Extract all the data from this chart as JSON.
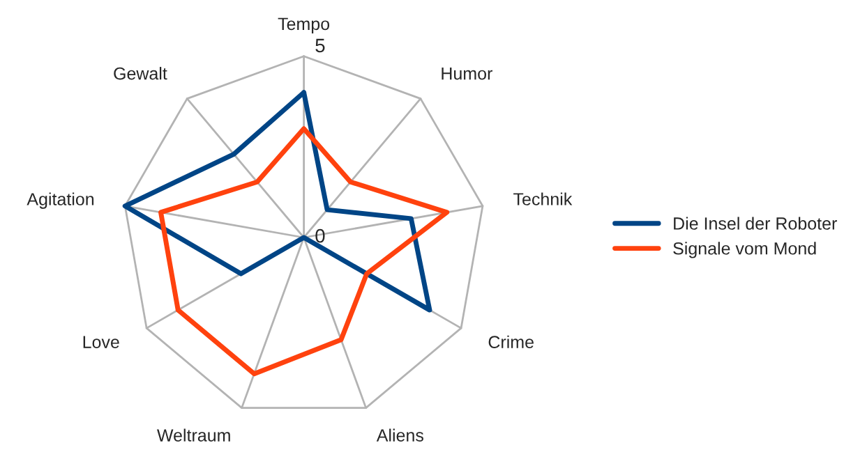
{
  "chart_data": {
    "type": "radar",
    "categories": [
      "Tempo",
      "Humor",
      "Technik",
      "Crime",
      "Aliens",
      "Weltraum",
      "Love",
      "Agitation",
      "Gewalt"
    ],
    "series": [
      {
        "name": "Die Insel der Roboter",
        "color": "#004586",
        "values": [
          4,
          1,
          3,
          4,
          0,
          0,
          2,
          5,
          3
        ]
      },
      {
        "name": "Signale vom Mond",
        "color": "#ff420e",
        "values": [
          3,
          2,
          4,
          2,
          3,
          4,
          4,
          4,
          2
        ]
      }
    ],
    "ylim": [
      0,
      5
    ],
    "yticks": [
      0,
      5
    ],
    "grid": true,
    "legend": "right"
  }
}
